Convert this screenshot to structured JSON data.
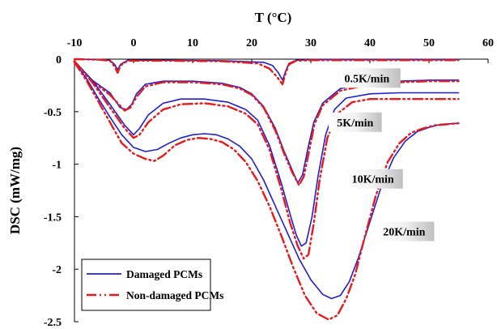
{
  "chart_data": {
    "type": "line",
    "title": "",
    "xlabel": "T (°C)",
    "ylabel": "DSC (mW/mg)",
    "xlim": [
      -10,
      60
    ],
    "ylim": [
      -2.5,
      0
    ],
    "x_ticks": [
      "-10",
      "0",
      "10",
      "20",
      "30",
      "40",
      "50",
      "60"
    ],
    "y_ticks": [
      "0",
      "-0.5",
      "-1",
      "-1.5",
      "-2",
      "-2.5"
    ],
    "x_axis_position": "top",
    "grid": false,
    "legend": {
      "position": "bottom-left",
      "entries": [
        {
          "name": "Damaged PCMs",
          "color": "#1f1fd6",
          "style": "solid"
        },
        {
          "name": "Non-damaged PCMs",
          "color": "#e8191b",
          "style": "dash-dot-dot"
        }
      ]
    },
    "rate_labels": [
      {
        "text": "0.5K/min",
        "x": 39.5,
        "y": -0.18
      },
      {
        "text": "5K/min",
        "x": 37.5,
        "y": -0.6
      },
      {
        "text": "10K/min",
        "x": 40.5,
        "y": -1.14
      },
      {
        "text": "20K/min",
        "x": 45.8,
        "y": -1.64
      }
    ],
    "series": [
      {
        "group": "Damaged PCMs",
        "rate": "0.5K/min",
        "x": [
          -10,
          -6,
          -4,
          -3.2,
          -2.7,
          -2.2,
          -1,
          5,
          15,
          22,
          23.5,
          24.5,
          25.2,
          25.7,
          26.3,
          27.5,
          30,
          40,
          50,
          55
        ],
        "y": [
          0,
          -0.005,
          -0.01,
          -0.05,
          -0.1,
          -0.05,
          -0.01,
          -0.01,
          -0.015,
          -0.03,
          -0.06,
          -0.13,
          -0.2,
          -0.12,
          -0.04,
          -0.01,
          -0.005,
          -0.005,
          -0.005,
          -0.005
        ]
      },
      {
        "group": "Non-damaged PCMs",
        "rate": "0.5K/min",
        "x": [
          -10,
          -6,
          -4,
          -3.2,
          -2.7,
          -2.2,
          -1,
          5,
          15,
          21,
          23,
          24.3,
          25.2,
          25.7,
          26.3,
          27.5,
          30,
          40,
          50,
          55
        ],
        "y": [
          0,
          -0.005,
          -0.015,
          -0.07,
          -0.13,
          -0.06,
          -0.015,
          -0.015,
          -0.02,
          -0.04,
          -0.09,
          -0.17,
          -0.24,
          -0.14,
          -0.05,
          -0.015,
          -0.01,
          -0.01,
          -0.01,
          -0.01
        ]
      },
      {
        "group": "Damaged PCMs",
        "rate": "5K/min",
        "x": [
          -10,
          -7,
          -4,
          -2.3,
          -1.2,
          -0.3,
          0.5,
          2,
          5,
          10,
          15,
          18,
          20,
          22,
          24,
          25.5,
          26.8,
          27.8,
          28.6,
          29.5,
          30.5,
          32,
          35,
          40,
          45,
          50,
          55
        ],
        "y": [
          -0.02,
          -0.2,
          -0.32,
          -0.46,
          -0.48,
          -0.43,
          -0.33,
          -0.24,
          -0.21,
          -0.21,
          -0.23,
          -0.27,
          -0.33,
          -0.45,
          -0.66,
          -0.88,
          -1.05,
          -1.18,
          -1.1,
          -0.85,
          -0.6,
          -0.42,
          -0.28,
          -0.22,
          -0.21,
          -0.2,
          -0.2
        ]
      },
      {
        "group": "Non-damaged PCMs",
        "rate": "5K/min",
        "x": [
          -10,
          -7,
          -4,
          -2.5,
          -1.5,
          -0.5,
          0.5,
          2,
          5,
          10,
          15,
          18,
          20,
          22,
          24,
          25.5,
          26.8,
          28,
          28.8,
          29.7,
          30.6,
          32,
          35,
          40,
          45,
          50,
          55
        ],
        "y": [
          -0.02,
          -0.21,
          -0.34,
          -0.43,
          -0.49,
          -0.46,
          -0.36,
          -0.26,
          -0.22,
          -0.22,
          -0.24,
          -0.28,
          -0.34,
          -0.46,
          -0.68,
          -0.9,
          -1.07,
          -1.2,
          -1.12,
          -0.88,
          -0.62,
          -0.44,
          -0.3,
          -0.24,
          -0.22,
          -0.21,
          -0.21
        ]
      },
      {
        "group": "Damaged PCMs",
        "rate": "10K/min",
        "x": [
          -10,
          -7,
          -4,
          -1.5,
          0,
          1,
          2.5,
          5,
          8,
          12,
          16,
          19,
          21,
          23,
          25,
          26.5,
          27.5,
          28.4,
          29.2,
          30.2,
          31.2,
          32.5,
          34,
          36,
          40,
          45,
          50,
          55
        ],
        "y": [
          -0.02,
          -0.2,
          -0.43,
          -0.63,
          -0.72,
          -0.66,
          -0.53,
          -0.42,
          -0.38,
          -0.38,
          -0.41,
          -0.48,
          -0.58,
          -0.82,
          -1.18,
          -1.48,
          -1.67,
          -1.78,
          -1.75,
          -1.5,
          -1.12,
          -0.72,
          -0.48,
          -0.37,
          -0.33,
          -0.32,
          -0.32,
          -0.32
        ]
      },
      {
        "group": "Non-damaged PCMs",
        "rate": "10K/min",
        "x": [
          -10,
          -7,
          -4,
          -1.5,
          0,
          1,
          2.5,
          5,
          8,
          12,
          16,
          19,
          21,
          23,
          25,
          26.5,
          27.8,
          28.8,
          29.6,
          30.5,
          31.5,
          32.8,
          34.5,
          37,
          40,
          45,
          50,
          55
        ],
        "y": [
          -0.02,
          -0.22,
          -0.46,
          -0.66,
          -0.75,
          -0.72,
          -0.6,
          -0.48,
          -0.43,
          -0.42,
          -0.45,
          -0.52,
          -0.62,
          -0.86,
          -1.24,
          -1.56,
          -1.78,
          -1.9,
          -1.86,
          -1.56,
          -1.15,
          -0.75,
          -0.52,
          -0.41,
          -0.38,
          -0.38,
          -0.38,
          -0.38
        ]
      },
      {
        "group": "Damaged PCMs",
        "rate": "20K/min",
        "x": [
          -10,
          -8,
          -6,
          -4,
          -2,
          0,
          2,
          4,
          6,
          8,
          10,
          12,
          14,
          16,
          18,
          20,
          22,
          24,
          26,
          28,
          30,
          32,
          33.5,
          35,
          36.5,
          38,
          40,
          42,
          44,
          46,
          48,
          50,
          52,
          55
        ],
        "y": [
          -0.03,
          -0.18,
          -0.37,
          -0.55,
          -0.72,
          -0.84,
          -0.88,
          -0.86,
          -0.8,
          -0.75,
          -0.72,
          -0.71,
          -0.72,
          -0.76,
          -0.83,
          -0.95,
          -1.15,
          -1.4,
          -1.65,
          -1.9,
          -2.1,
          -2.24,
          -2.28,
          -2.25,
          -2.12,
          -1.9,
          -1.55,
          -1.2,
          -0.94,
          -0.78,
          -0.69,
          -0.65,
          -0.62,
          -0.61
        ]
      },
      {
        "group": "Non-damaged PCMs",
        "rate": "20K/min",
        "x": [
          -10,
          -8,
          -6,
          -4,
          -2,
          0,
          2,
          3.5,
          5,
          7,
          9,
          11,
          13,
          15,
          17,
          19,
          21,
          23,
          25,
          27,
          29,
          31,
          33,
          34.5,
          36,
          37.5,
          39,
          41,
          43,
          45,
          47,
          49,
          51,
          53,
          55
        ],
        "y": [
          -0.03,
          -0.2,
          -0.4,
          -0.6,
          -0.8,
          -0.9,
          -0.95,
          -0.97,
          -0.92,
          -0.82,
          -0.77,
          -0.75,
          -0.76,
          -0.79,
          -0.86,
          -0.98,
          -1.16,
          -1.4,
          -1.68,
          -1.98,
          -2.25,
          -2.42,
          -2.48,
          -2.44,
          -2.28,
          -2.05,
          -1.72,
          -1.3,
          -0.98,
          -0.8,
          -0.7,
          -0.66,
          -0.63,
          -0.62,
          -0.61
        ]
      }
    ]
  }
}
